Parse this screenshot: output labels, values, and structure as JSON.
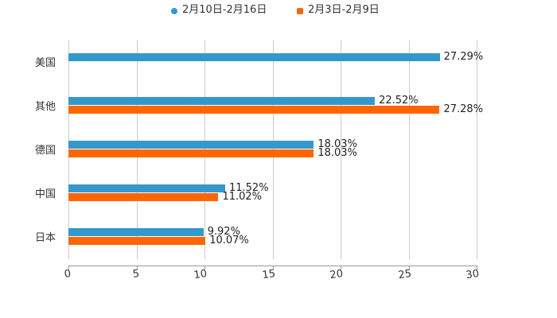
{
  "chart_data": {
    "type": "bar",
    "orientation": "horizontal",
    "title": "",
    "xlabel": "",
    "ylabel": "",
    "xlim": [
      0,
      30
    ],
    "x_ticks": [
      "0",
      "5",
      "10",
      "15",
      "20",
      "25",
      "30"
    ],
    "grid": true,
    "legend_position": "top",
    "categories": [
      "美国",
      "其他",
      "德国",
      "中国",
      "日本"
    ],
    "series": [
      {
        "name": "2月10日-2月16日",
        "color": "#3399cc",
        "values": [
          27.29,
          22.52,
          18.03,
          11.52,
          9.92
        ],
        "labels": [
          "27.29%",
          "22.52%",
          "18.03%",
          "11.52%",
          "9.92%"
        ]
      },
      {
        "name": "2月3日-2月9日",
        "color": "#ff6600",
        "values": [
          null,
          27.28,
          18.03,
          11.02,
          10.07
        ],
        "labels": [
          "",
          "27.28%",
          "18.03%",
          "11.02%",
          "10.07%"
        ]
      }
    ]
  },
  "legend": [
    {
      "label": "2月10日-2月16日",
      "color": "#3399cc",
      "shape": "circle"
    },
    {
      "label": "2月3日-2月9日",
      "color": "#ff6600",
      "shape": "square"
    }
  ]
}
